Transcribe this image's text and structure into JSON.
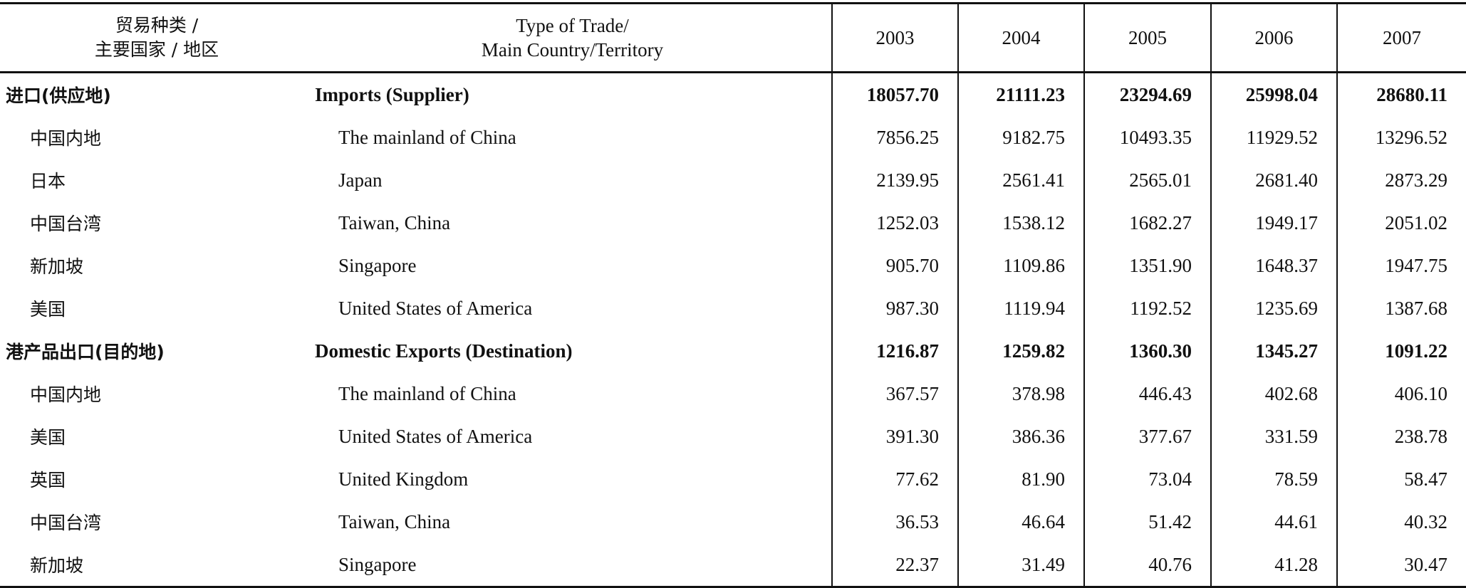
{
  "header": {
    "cn": [
      "贸易种类 /",
      "主要国家 / 地区"
    ],
    "en": [
      "Type of Trade/",
      "Main Country/Territory"
    ],
    "years": [
      "2003",
      "2004",
      "2005",
      "2006",
      "2007"
    ]
  },
  "rows": [
    {
      "cn": "进口(供应地)",
      "en": "Imports (Supplier)",
      "bold": true,
      "values": [
        "18057.70",
        "21111.23",
        "23294.69",
        "25998.04",
        "28680.11"
      ]
    },
    {
      "cn": "中国内地",
      "en": "The mainland of China",
      "bold": false,
      "values": [
        "7856.25",
        "9182.75",
        "10493.35",
        "11929.52",
        "13296.52"
      ]
    },
    {
      "cn": "日本",
      "en": "Japan",
      "bold": false,
      "values": [
        "2139.95",
        "2561.41",
        "2565.01",
        "2681.40",
        "2873.29"
      ]
    },
    {
      "cn": "中国台湾",
      "en": "Taiwan, China",
      "bold": false,
      "values": [
        "1252.03",
        "1538.12",
        "1682.27",
        "1949.17",
        "2051.02"
      ]
    },
    {
      "cn": "新加坡",
      "en": "Singapore",
      "bold": false,
      "values": [
        "905.70",
        "1109.86",
        "1351.90",
        "1648.37",
        "1947.75"
      ]
    },
    {
      "cn": "美国",
      "en": "United States of America",
      "bold": false,
      "values": [
        "987.30",
        "1119.94",
        "1192.52",
        "1235.69",
        "1387.68"
      ]
    },
    {
      "cn": "港产品出口(目的地)",
      "en": "Domestic Exports (Destination)",
      "bold": true,
      "values": [
        "1216.87",
        "1259.82",
        "1360.30",
        "1345.27",
        "1091.22"
      ]
    },
    {
      "cn": "中国内地",
      "en": "The mainland of China",
      "bold": false,
      "values": [
        "367.57",
        "378.98",
        "446.43",
        "402.68",
        "406.10"
      ]
    },
    {
      "cn": "美国",
      "en": "United States of America",
      "bold": false,
      "values": [
        "391.30",
        "386.36",
        "377.67",
        "331.59",
        "238.78"
      ]
    },
    {
      "cn": "英国",
      "en": "United Kingdom",
      "bold": false,
      "values": [
        "77.62",
        "81.90",
        "73.04",
        "78.59",
        "58.47"
      ]
    },
    {
      "cn": "中国台湾",
      "en": "Taiwan, China",
      "bold": false,
      "values": [
        "36.53",
        "46.64",
        "51.42",
        "44.61",
        "40.32"
      ]
    },
    {
      "cn": "新加坡",
      "en": "Singapore",
      "bold": false,
      "values": [
        "22.37",
        "31.49",
        "40.76",
        "41.28",
        "30.47"
      ]
    }
  ]
}
